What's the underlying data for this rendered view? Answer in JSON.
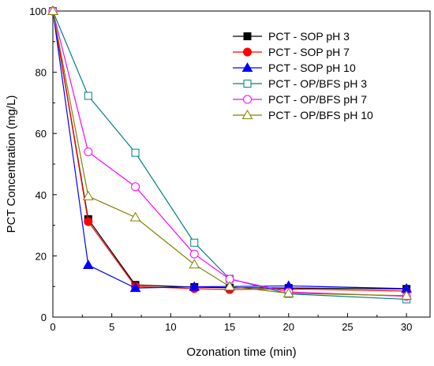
{
  "chart_data": {
    "type": "line",
    "xlabel": "Ozonation time (min)",
    "ylabel": "PCT Concentration (mg/L)",
    "xlim": [
      0,
      32
    ],
    "ylim": [
      0,
      100
    ],
    "xticks": [
      0,
      5,
      10,
      15,
      20,
      25,
      30
    ],
    "yticks": [
      0,
      20,
      40,
      60,
      80,
      100
    ],
    "grid": false,
    "legend_position": "top-right",
    "series": [
      {
        "name": "PCT - SOP pH 3",
        "color": "#000000",
        "marker": "square-filled",
        "x": [
          0,
          3,
          7,
          12,
          15,
          20,
          30
        ],
        "y": [
          100,
          32.0,
          10.5,
          9.8,
          9.6,
          9.5,
          9.2
        ]
      },
      {
        "name": "PCT - SOP pH 7",
        "color": "#ff0000",
        "marker": "circle-filled",
        "x": [
          0,
          3,
          7,
          12,
          15,
          20,
          30
        ],
        "y": [
          100,
          31.2,
          10.0,
          9.3,
          9.0,
          9.2,
          8.5
        ]
      },
      {
        "name": "PCT - SOP pH 10",
        "color": "#0000ff",
        "marker": "triangle-filled",
        "x": [
          0,
          3,
          7,
          12,
          15,
          20,
          30
        ],
        "y": [
          100,
          17.0,
          9.5,
          9.9,
          10.0,
          10.2,
          9.3
        ]
      },
      {
        "name": "PCT - OP/BFS pH 3",
        "color": "#008080",
        "marker": "square-open",
        "x": [
          0,
          3,
          7,
          12,
          15,
          20,
          30
        ],
        "y": [
          100,
          72.3,
          53.7,
          24.3,
          12.5,
          7.6,
          5.8
        ]
      },
      {
        "name": "PCT - OP/BFS pH 7",
        "color": "#ff00ff",
        "marker": "circle-open",
        "x": [
          0,
          3,
          7,
          12,
          15,
          20,
          30
        ],
        "y": [
          100,
          54.0,
          42.6,
          20.6,
          12.4,
          8.2,
          6.8
        ]
      },
      {
        "name": "PCT - OP/BFS pH 10",
        "color": "#808000",
        "marker": "triangle-open",
        "x": [
          0,
          3,
          7,
          12,
          15,
          20,
          30
        ],
        "y": [
          100,
          39.5,
          32.6,
          17.2,
          10.0,
          7.8,
          7.0
        ]
      }
    ]
  }
}
